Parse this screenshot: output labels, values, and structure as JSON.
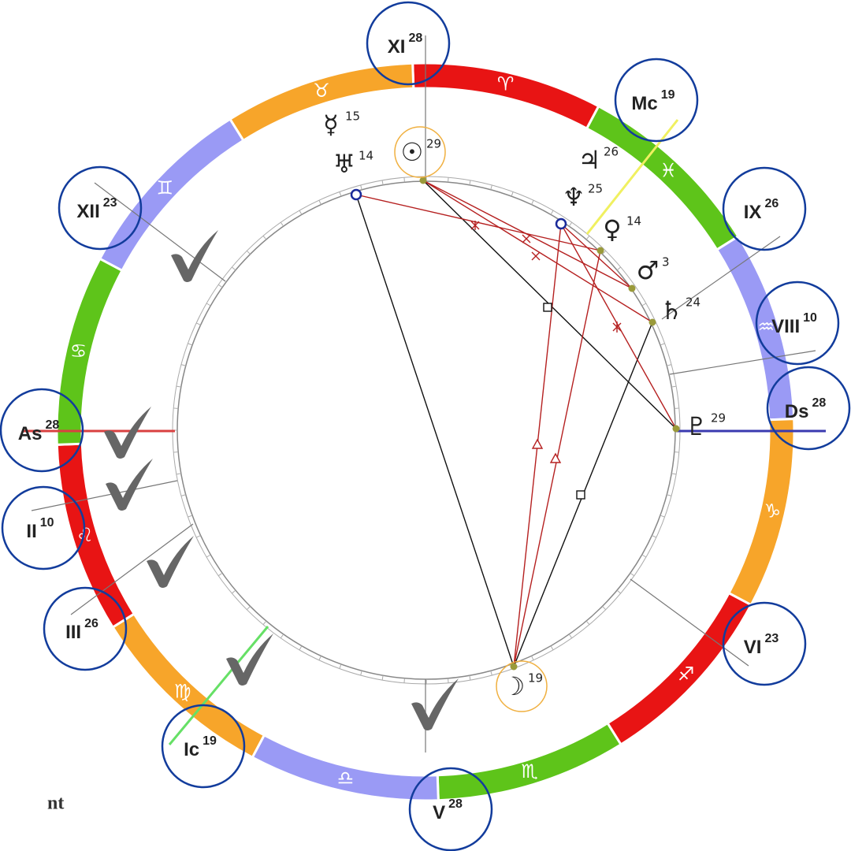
{
  "signs": [
    {
      "glyph": "♈"
    },
    {
      "glyph": "♓"
    },
    {
      "glyph": "♒"
    },
    {
      "glyph": "♑"
    },
    {
      "glyph": "♐"
    },
    {
      "glyph": "♏"
    },
    {
      "glyph": "♎"
    },
    {
      "glyph": "♍"
    },
    {
      "glyph": "♌"
    },
    {
      "glyph": "♋"
    },
    {
      "glyph": "♊"
    },
    {
      "glyph": "♉"
    }
  ],
  "houses": [
    {
      "label": "XI",
      "degree": 28
    },
    {
      "label": "Mc",
      "degree": 19
    },
    {
      "label": "IX",
      "degree": 26
    },
    {
      "label": "VIII",
      "degree": 10
    },
    {
      "label": "Ds",
      "degree": 28
    },
    {
      "label": "VI",
      "degree": 23
    },
    {
      "label": "V",
      "degree": 28
    },
    {
      "label": "Ic",
      "degree": 19
    },
    {
      "label": "III",
      "degree": 26
    },
    {
      "label": "II",
      "degree": 10
    },
    {
      "label": "As",
      "degree": 28
    },
    {
      "label": "XII",
      "degree": 23
    }
  ],
  "planets": [
    {
      "glyph": "☿",
      "degree": 15
    },
    {
      "glyph": "♅",
      "degree": 14
    },
    {
      "glyph": "☉",
      "degree": 29
    },
    {
      "glyph": "♃",
      "degree": 26
    },
    {
      "glyph": "♆",
      "degree": 25
    },
    {
      "glyph": "♀",
      "degree": 14
    },
    {
      "glyph": "♂",
      "degree": 3
    },
    {
      "glyph": "♄",
      "degree": 24
    },
    {
      "glyph": "♇",
      "degree": 29
    },
    {
      "glyph": "☽",
      "degree": 19
    }
  ],
  "footer": "nt"
}
